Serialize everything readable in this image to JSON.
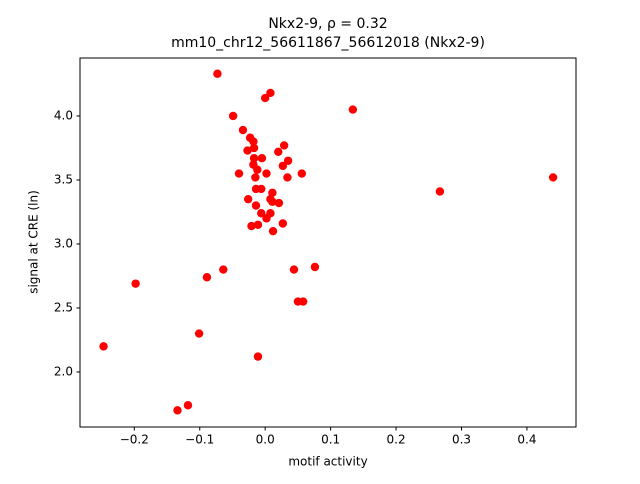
{
  "chart_data": {
    "type": "scatter",
    "title": "Nkx2-9, ρ = 0.32",
    "subtitle": "mm10_chr12_56611867_56612018 (Nkx2-9)",
    "x_label": "motif activity",
    "y_label": "signal at CRE (ln)",
    "color": "#ff0000",
    "x": [
      -0.073,
      -0.049,
      0.008,
      0.0,
      0.134,
      -0.034,
      -0.023,
      -0.018,
      -0.017,
      -0.027,
      0.029,
      0.02,
      -0.017,
      -0.005,
      0.035,
      0.027,
      -0.018,
      -0.012,
      -0.04,
      0.002,
      0.056,
      -0.015,
      0.034,
      0.267,
      0.44,
      -0.014,
      -0.006,
      0.011,
      -0.026,
      0.008,
      0.011,
      0.021,
      -0.014,
      -0.006,
      0.008,
      0.002,
      -0.021,
      -0.011,
      0.027,
      0.012,
      -0.064,
      -0.089,
      0.044,
      0.076,
      -0.198,
      0.05,
      0.058,
      -0.101,
      -0.247,
      -0.011,
      -0.118,
      -0.134
    ],
    "y": [
      4.33,
      4.0,
      4.18,
      4.14,
      4.05,
      3.89,
      3.83,
      3.8,
      3.75,
      3.73,
      3.77,
      3.72,
      3.67,
      3.67,
      3.65,
      3.61,
      3.62,
      3.58,
      3.55,
      3.55,
      3.55,
      3.52,
      3.52,
      3.41,
      3.52,
      3.43,
      3.43,
      3.4,
      3.35,
      3.35,
      3.33,
      3.32,
      3.3,
      3.24,
      3.24,
      3.2,
      3.14,
      3.15,
      3.16,
      3.1,
      2.8,
      2.74,
      2.8,
      2.82,
      2.69,
      2.55,
      2.55,
      2.3,
      2.2,
      2.12,
      1.74,
      1.7
    ],
    "xlim": [
      -0.283,
      0.475
    ],
    "ylim": [
      1.57,
      4.453
    ],
    "xticks": [
      {
        "value": -0.2,
        "label": "−0.2"
      },
      {
        "value": -0.1,
        "label": "−0.1"
      },
      {
        "value": 0,
        "label": "0.0"
      },
      0.1,
      0.2,
      0.3,
      0.4
    ],
    "yticks": [
      {
        "value": 2,
        "label": "2.0"
      },
      2.5,
      {
        "value": 3,
        "label": "3.0"
      },
      3.5,
      {
        "value": 4,
        "label": "4.0"
      }
    ]
  }
}
